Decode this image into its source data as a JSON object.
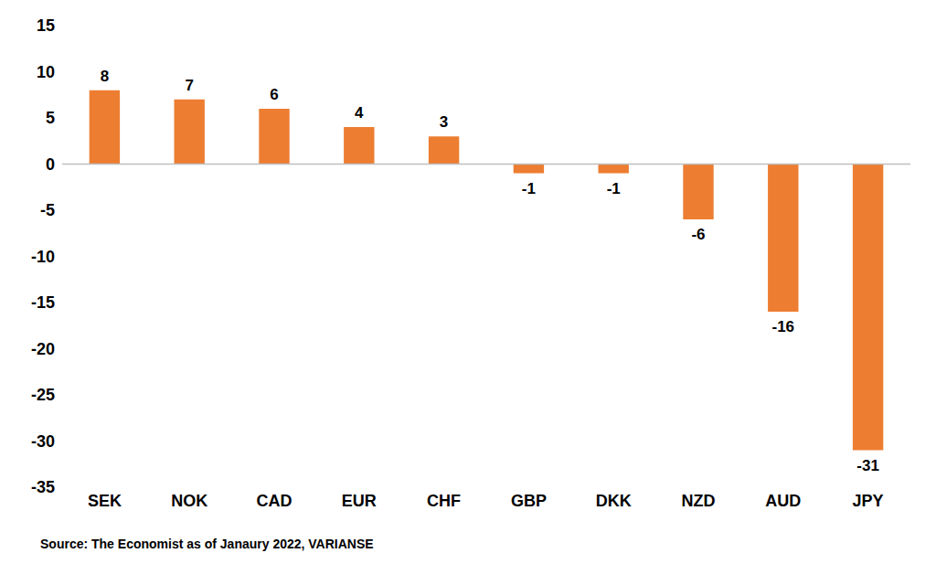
{
  "chart_data": {
    "type": "bar",
    "categories": [
      "SEK",
      "NOK",
      "CAD",
      "EUR",
      "CHF",
      "GBP",
      "DKK",
      "NZD",
      "AUD",
      "JPY"
    ],
    "values": [
      8,
      7,
      6,
      4,
      3,
      -1,
      -1,
      -6,
      -16,
      -31
    ],
    "color": "#ed7d31",
    "ylim": [
      -35,
      15
    ],
    "yticks": [
      -35,
      -30,
      -25,
      -20,
      -15,
      -10,
      -5,
      0,
      5,
      10,
      15
    ],
    "grid": false,
    "data_labels": true,
    "annotations": [
      "Source: The Economist as of Janaury 2022, VARIANSE"
    ]
  }
}
